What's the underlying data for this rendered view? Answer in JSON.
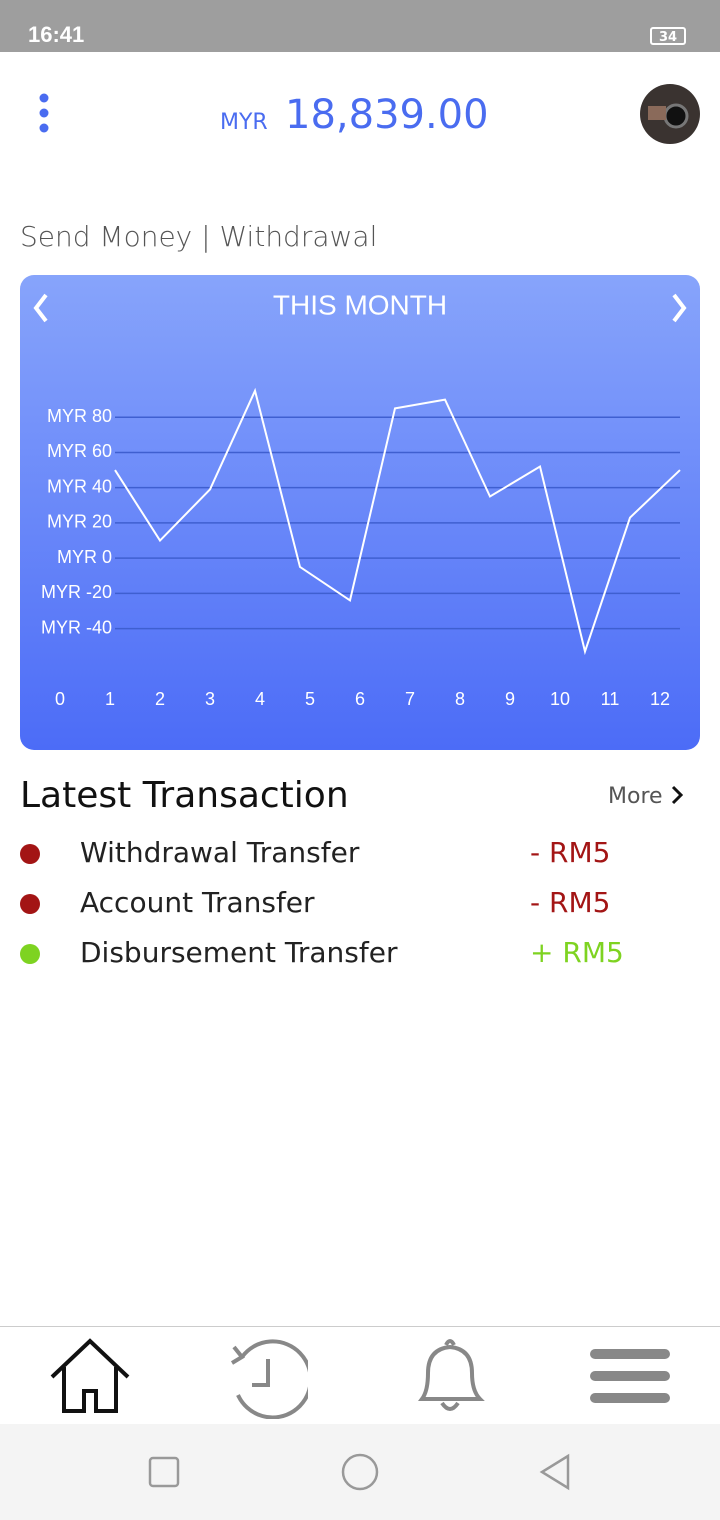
{
  "status_bar": {
    "time": "16:41",
    "battery": "34"
  },
  "header": {
    "currency": "MYR",
    "balance": "18,839.00"
  },
  "section_title": "Send Money | Withdrawal",
  "chart_data": {
    "type": "line",
    "title": "THIS MONTH",
    "x": [
      1.1,
      2.0,
      3.0,
      3.9,
      4.8,
      5.8,
      6.7,
      7.7,
      8.6,
      9.6,
      10.5,
      11.4,
      12.4
    ],
    "series": [
      {
        "color": "#ffffff",
        "values": [
          50,
          10,
          39,
          95,
          -5,
          -24,
          85,
          90,
          35,
          52,
          -53,
          23,
          50
        ]
      }
    ],
    "xlim": [
      0,
      12.4
    ],
    "xticks": [
      0,
      1,
      2,
      3,
      4,
      5,
      6,
      7,
      8,
      9,
      10,
      11,
      12
    ],
    "ylim": [
      -55,
      100
    ],
    "yticks": [
      {
        "value": 80,
        "label": "MYR 80"
      },
      {
        "value": 60,
        "label": "MYR 60"
      },
      {
        "value": 40,
        "label": "MYR 40"
      },
      {
        "value": 20,
        "label": "MYR 20"
      },
      {
        "value": 0,
        "label": "MYR 0"
      },
      {
        "value": -20,
        "label": "MYR -20"
      },
      {
        "value": -40,
        "label": "MYR -40"
      }
    ],
    "grid": true
  },
  "transactions": {
    "title": "Latest Transaction",
    "more": "More",
    "items": [
      {
        "name": "Withdrawal Transfer",
        "amount": "- RM5",
        "color": "#a31515"
      },
      {
        "name": "Account Transfer",
        "amount": "- RM5",
        "color": "#a31515"
      },
      {
        "name": "Disbursement Transfer",
        "amount": "+ RM5",
        "color": "#7ed321"
      }
    ]
  }
}
